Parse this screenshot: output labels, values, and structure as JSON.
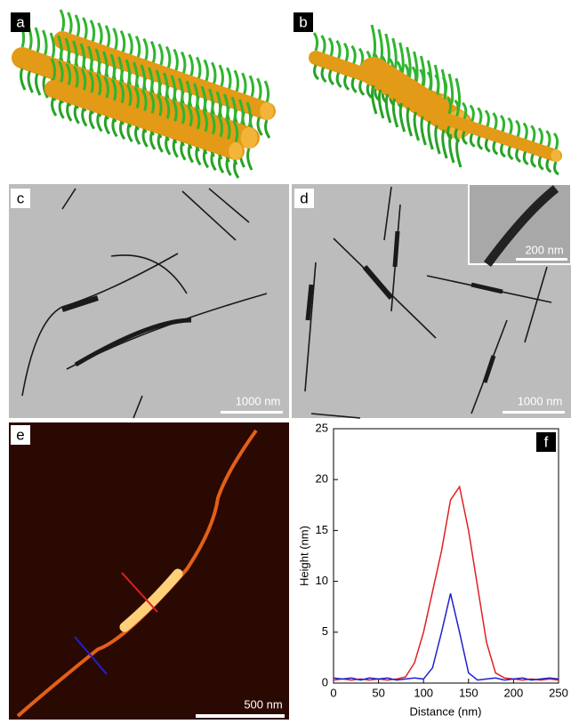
{
  "panel_labels": [
    "a",
    "b",
    "c",
    "d",
    "e",
    "f"
  ],
  "scale_bars": [
    "1000 nm",
    "1000 nm",
    "200 nm",
    "500 nm"
  ],
  "chart_data": {
    "type": "line",
    "x": [
      0,
      10,
      20,
      30,
      40,
      50,
      60,
      70,
      80,
      90,
      100,
      110,
      120,
      130,
      140,
      150,
      160,
      170,
      180,
      190,
      200,
      210,
      220,
      230,
      240,
      250
    ],
    "series": [
      {
        "color": "#e02020",
        "values": [
          0.3,
          0.4,
          0.3,
          0.4,
          0.3,
          0.4,
          0.3,
          0.4,
          0.6,
          2,
          5,
          9,
          13,
          18,
          19.3,
          15,
          9.5,
          4,
          1,
          0.5,
          0.4,
          0.3,
          0.4,
          0.3,
          0.4,
          0.3
        ]
      },
      {
        "color": "#2020d0",
        "values": [
          0.5,
          0.4,
          0.5,
          0.3,
          0.5,
          0.4,
          0.5,
          0.3,
          0.4,
          0.5,
          0.4,
          1.5,
          5,
          8.8,
          5,
          1,
          0.3,
          0.4,
          0.5,
          0.3,
          0.4,
          0.5,
          0.3,
          0.4,
          0.5,
          0.4
        ]
      }
    ],
    "xlim": [
      0,
      250
    ],
    "xticks": [
      0,
      50,
      100,
      150,
      200,
      250
    ],
    "ylim": [
      0,
      25
    ],
    "yticks": [
      0,
      5,
      10,
      15,
      20,
      25
    ],
    "xlabel": "Distance (nm)",
    "ylabel": "Height (nm)"
  }
}
